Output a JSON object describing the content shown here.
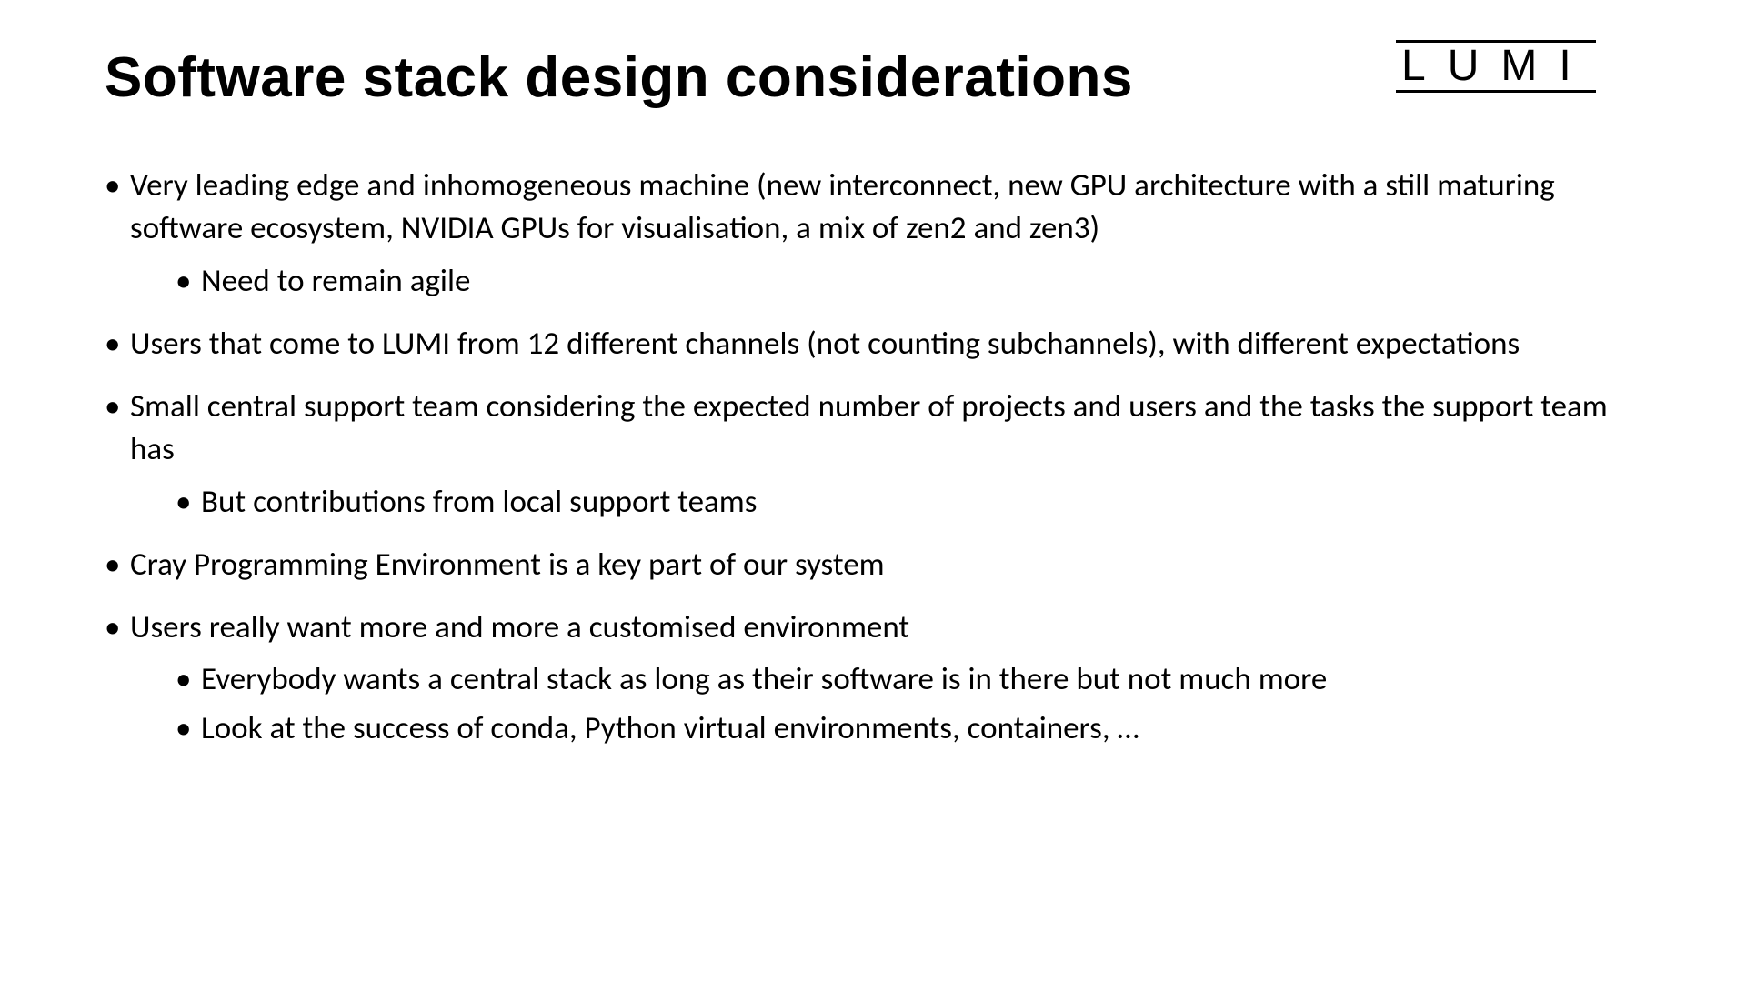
{
  "title": "Software stack design considerations",
  "logo": "LUMI",
  "bullets": [
    {
      "text": "Very leading edge and inhomogeneous machine (new interconnect, new GPU architecture with a still maturing software ecosystem, NVIDIA GPUs for visualisation, a mix of zen2 and zen3)",
      "sub": [
        "Need to remain agile"
      ]
    },
    {
      "text": "Users that come to LUMI from 12 different channels (not counting subchannels), with different expectations",
      "sub": []
    },
    {
      "text": "Small central support team considering the expected number of projects and users and the tasks the support team has",
      "sub": [
        "But contributions from local support teams"
      ]
    },
    {
      "text": "Cray Programming Environment is a key part of our system",
      "sub": []
    },
    {
      "text": "Users really want more and more a customised environment",
      "sub": [
        "Everybody wants a central stack as long as their software is in there but not much more",
        "Look at the success of conda, Python virtual environments, containers, …"
      ]
    }
  ],
  "colors": {
    "background": "#ffffff",
    "text": "#000000"
  }
}
